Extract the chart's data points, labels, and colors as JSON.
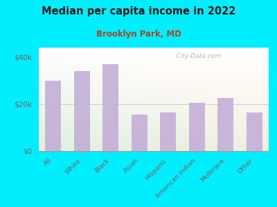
{
  "title": "Median per capita income in 2022",
  "subtitle": "Brooklyn Park, MD",
  "categories": [
    "All",
    "White",
    "Black",
    "Asian",
    "Hispanic",
    "American Indian",
    "Multirace",
    "Other"
  ],
  "values": [
    30000,
    34000,
    37000,
    15500,
    16500,
    20500,
    22500,
    16500
  ],
  "bar_color": "#c4afd8",
  "background_outer": "#00eeff",
  "title_color": "#1a1a1a",
  "subtitle_color": "#aa4422",
  "tick_color": "#666666",
  "ytick_labels": [
    "$0",
    "$20k",
    "$40k"
  ],
  "ytick_values": [
    0,
    20000,
    40000
  ],
  "ylim": [
    0,
    44000
  ],
  "watermark": "  City-Data.com",
  "grid_color": "#cccccc"
}
